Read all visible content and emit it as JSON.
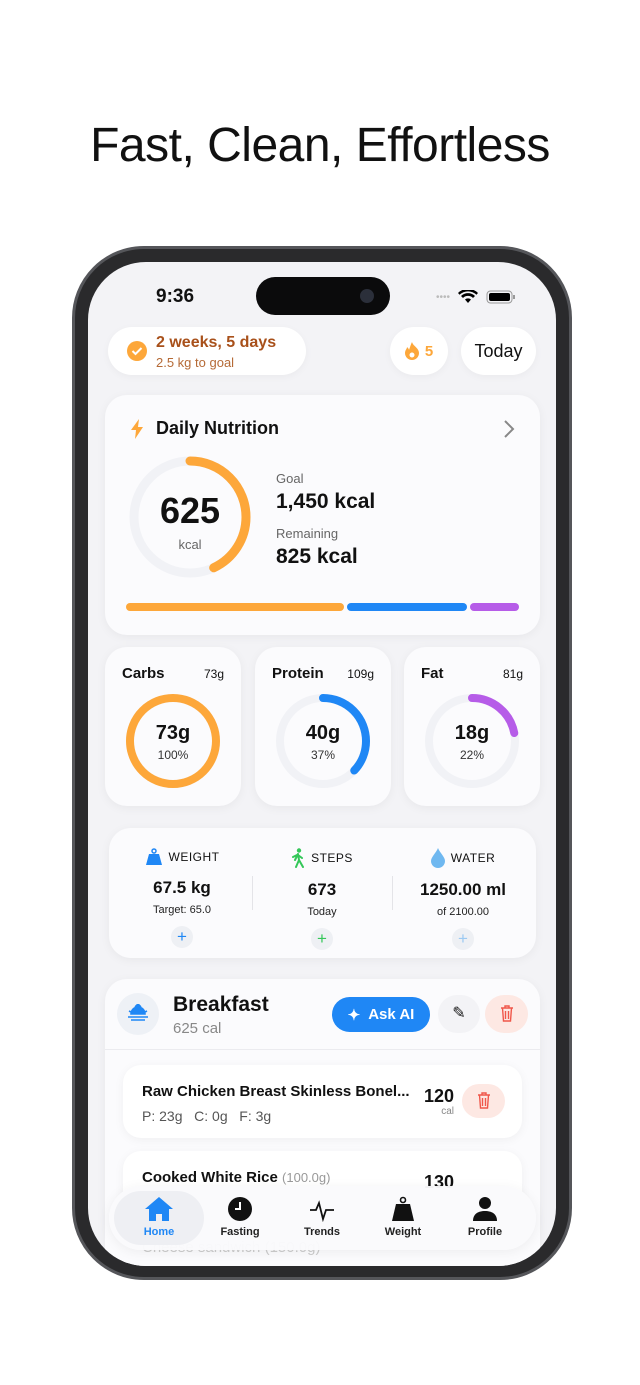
{
  "headline": "Fast, Clean, Effortless",
  "status_bar": {
    "time": "9:36"
  },
  "header": {
    "streak_title": "2 weeks, 5 days",
    "streak_subtitle": "2.5 kg to goal",
    "fire_count": "5",
    "date_button": "Today"
  },
  "nutrition": {
    "title": "Daily Nutrition",
    "consumed": "625",
    "unit": "kcal",
    "goal_label": "Goal",
    "goal_value": "1,450 kcal",
    "remaining_label": "Remaining",
    "remaining_value": "825 kcal",
    "progress_fraction": 0.43,
    "bar_colors": [
      "#fda73a",
      "#1f87f5",
      "#b65ce8"
    ]
  },
  "macros": [
    {
      "name": "Carbs",
      "goal": "73g",
      "value": "73g",
      "percent": "100%",
      "fraction": 1.0,
      "color": "#fda73a"
    },
    {
      "name": "Protein",
      "goal": "109g",
      "value": "40g",
      "percent": "37%",
      "fraction": 0.37,
      "color": "#1f87f5"
    },
    {
      "name": "Fat",
      "goal": "81g",
      "value": "18g",
      "percent": "22%",
      "fraction": 0.22,
      "color": "#b65ce8"
    }
  ],
  "stats": [
    {
      "label": "WEIGHT",
      "value": "67.5 kg",
      "sub": "Target: 65.0",
      "color": "#1f87f5",
      "icon": "weight-icon"
    },
    {
      "label": "STEPS",
      "value": "673",
      "sub": "Today",
      "color": "#34c759",
      "icon": "walk-icon"
    },
    {
      "label": "WATER",
      "value": "1250.00 ml",
      "sub": "of 2100.00",
      "color": "#6fb8f0",
      "icon": "drop-icon"
    }
  ],
  "meal": {
    "title": "Breakfast",
    "calories": "625 cal",
    "ask_ai": "Ask AI",
    "items": [
      {
        "name": "Raw Chicken Breast Skinless Bonel...",
        "macros": "P: 23g   C: 0g   F: 3g",
        "cal": "120",
        "cal_unit": "cal"
      },
      {
        "name": "Cooked White Rice",
        "qty": "(100.0g)",
        "cal": "130"
      },
      {
        "name": "Cheese sandwich",
        "qty": "(150.0g)"
      }
    ]
  },
  "tabbar": [
    {
      "label": "Home",
      "active": true
    },
    {
      "label": "Fasting"
    },
    {
      "label": "Trends"
    },
    {
      "label": "Weight"
    },
    {
      "label": "Profile"
    }
  ],
  "colors": {
    "accent": "#1f87f5",
    "orange": "#fda73a",
    "streak_text": "#a8501a",
    "danger": "#f0574a"
  }
}
